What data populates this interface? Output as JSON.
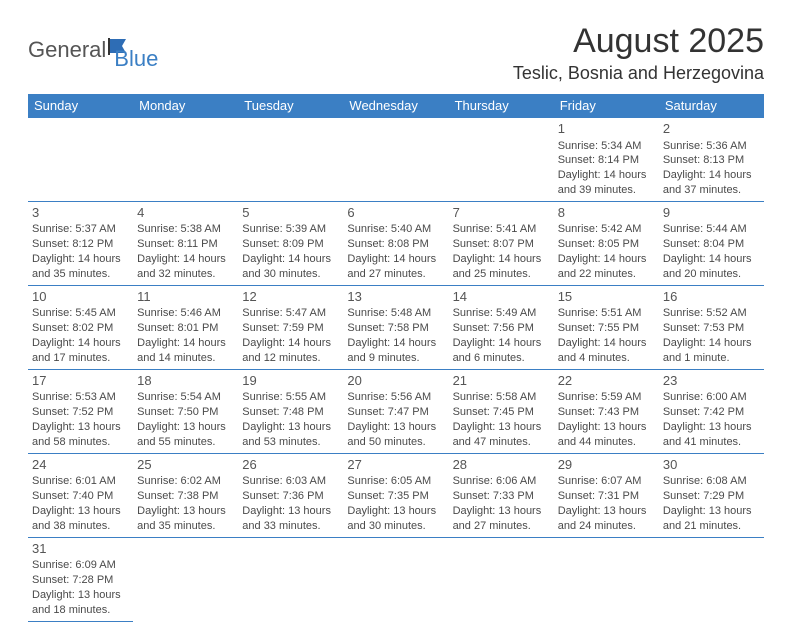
{
  "brand": {
    "part1": "General",
    "part2": "Blue"
  },
  "title": "August 2025",
  "location": "Teslic, Bosnia and Herzegovina",
  "colors": {
    "accent": "#3b7fc4",
    "text": "#4a4a4a",
    "bg": "#ffffff"
  },
  "day_headers": [
    "Sunday",
    "Monday",
    "Tuesday",
    "Wednesday",
    "Thursday",
    "Friday",
    "Saturday"
  ],
  "weeks": [
    [
      null,
      null,
      null,
      null,
      null,
      {
        "n": "1",
        "sr": "Sunrise: 5:34 AM",
        "ss": "Sunset: 8:14 PM",
        "d1": "Daylight: 14 hours",
        "d2": "and 39 minutes."
      },
      {
        "n": "2",
        "sr": "Sunrise: 5:36 AM",
        "ss": "Sunset: 8:13 PM",
        "d1": "Daylight: 14 hours",
        "d2": "and 37 minutes."
      }
    ],
    [
      {
        "n": "3",
        "sr": "Sunrise: 5:37 AM",
        "ss": "Sunset: 8:12 PM",
        "d1": "Daylight: 14 hours",
        "d2": "and 35 minutes."
      },
      {
        "n": "4",
        "sr": "Sunrise: 5:38 AM",
        "ss": "Sunset: 8:11 PM",
        "d1": "Daylight: 14 hours",
        "d2": "and 32 minutes."
      },
      {
        "n": "5",
        "sr": "Sunrise: 5:39 AM",
        "ss": "Sunset: 8:09 PM",
        "d1": "Daylight: 14 hours",
        "d2": "and 30 minutes."
      },
      {
        "n": "6",
        "sr": "Sunrise: 5:40 AM",
        "ss": "Sunset: 8:08 PM",
        "d1": "Daylight: 14 hours",
        "d2": "and 27 minutes."
      },
      {
        "n": "7",
        "sr": "Sunrise: 5:41 AM",
        "ss": "Sunset: 8:07 PM",
        "d1": "Daylight: 14 hours",
        "d2": "and 25 minutes."
      },
      {
        "n": "8",
        "sr": "Sunrise: 5:42 AM",
        "ss": "Sunset: 8:05 PM",
        "d1": "Daylight: 14 hours",
        "d2": "and 22 minutes."
      },
      {
        "n": "9",
        "sr": "Sunrise: 5:44 AM",
        "ss": "Sunset: 8:04 PM",
        "d1": "Daylight: 14 hours",
        "d2": "and 20 minutes."
      }
    ],
    [
      {
        "n": "10",
        "sr": "Sunrise: 5:45 AM",
        "ss": "Sunset: 8:02 PM",
        "d1": "Daylight: 14 hours",
        "d2": "and 17 minutes."
      },
      {
        "n": "11",
        "sr": "Sunrise: 5:46 AM",
        "ss": "Sunset: 8:01 PM",
        "d1": "Daylight: 14 hours",
        "d2": "and 14 minutes."
      },
      {
        "n": "12",
        "sr": "Sunrise: 5:47 AM",
        "ss": "Sunset: 7:59 PM",
        "d1": "Daylight: 14 hours",
        "d2": "and 12 minutes."
      },
      {
        "n": "13",
        "sr": "Sunrise: 5:48 AM",
        "ss": "Sunset: 7:58 PM",
        "d1": "Daylight: 14 hours",
        "d2": "and 9 minutes."
      },
      {
        "n": "14",
        "sr": "Sunrise: 5:49 AM",
        "ss": "Sunset: 7:56 PM",
        "d1": "Daylight: 14 hours",
        "d2": "and 6 minutes."
      },
      {
        "n": "15",
        "sr": "Sunrise: 5:51 AM",
        "ss": "Sunset: 7:55 PM",
        "d1": "Daylight: 14 hours",
        "d2": "and 4 minutes."
      },
      {
        "n": "16",
        "sr": "Sunrise: 5:52 AM",
        "ss": "Sunset: 7:53 PM",
        "d1": "Daylight: 14 hours",
        "d2": "and 1 minute."
      }
    ],
    [
      {
        "n": "17",
        "sr": "Sunrise: 5:53 AM",
        "ss": "Sunset: 7:52 PM",
        "d1": "Daylight: 13 hours",
        "d2": "and 58 minutes."
      },
      {
        "n": "18",
        "sr": "Sunrise: 5:54 AM",
        "ss": "Sunset: 7:50 PM",
        "d1": "Daylight: 13 hours",
        "d2": "and 55 minutes."
      },
      {
        "n": "19",
        "sr": "Sunrise: 5:55 AM",
        "ss": "Sunset: 7:48 PM",
        "d1": "Daylight: 13 hours",
        "d2": "and 53 minutes."
      },
      {
        "n": "20",
        "sr": "Sunrise: 5:56 AM",
        "ss": "Sunset: 7:47 PM",
        "d1": "Daylight: 13 hours",
        "d2": "and 50 minutes."
      },
      {
        "n": "21",
        "sr": "Sunrise: 5:58 AM",
        "ss": "Sunset: 7:45 PM",
        "d1": "Daylight: 13 hours",
        "d2": "and 47 minutes."
      },
      {
        "n": "22",
        "sr": "Sunrise: 5:59 AM",
        "ss": "Sunset: 7:43 PM",
        "d1": "Daylight: 13 hours",
        "d2": "and 44 minutes."
      },
      {
        "n": "23",
        "sr": "Sunrise: 6:00 AM",
        "ss": "Sunset: 7:42 PM",
        "d1": "Daylight: 13 hours",
        "d2": "and 41 minutes."
      }
    ],
    [
      {
        "n": "24",
        "sr": "Sunrise: 6:01 AM",
        "ss": "Sunset: 7:40 PM",
        "d1": "Daylight: 13 hours",
        "d2": "and 38 minutes."
      },
      {
        "n": "25",
        "sr": "Sunrise: 6:02 AM",
        "ss": "Sunset: 7:38 PM",
        "d1": "Daylight: 13 hours",
        "d2": "and 35 minutes."
      },
      {
        "n": "26",
        "sr": "Sunrise: 6:03 AM",
        "ss": "Sunset: 7:36 PM",
        "d1": "Daylight: 13 hours",
        "d2": "and 33 minutes."
      },
      {
        "n": "27",
        "sr": "Sunrise: 6:05 AM",
        "ss": "Sunset: 7:35 PM",
        "d1": "Daylight: 13 hours",
        "d2": "and 30 minutes."
      },
      {
        "n": "28",
        "sr": "Sunrise: 6:06 AM",
        "ss": "Sunset: 7:33 PM",
        "d1": "Daylight: 13 hours",
        "d2": "and 27 minutes."
      },
      {
        "n": "29",
        "sr": "Sunrise: 6:07 AM",
        "ss": "Sunset: 7:31 PM",
        "d1": "Daylight: 13 hours",
        "d2": "and 24 minutes."
      },
      {
        "n": "30",
        "sr": "Sunrise: 6:08 AM",
        "ss": "Sunset: 7:29 PM",
        "d1": "Daylight: 13 hours",
        "d2": "and 21 minutes."
      }
    ],
    [
      {
        "n": "31",
        "sr": "Sunrise: 6:09 AM",
        "ss": "Sunset: 7:28 PM",
        "d1": "Daylight: 13 hours",
        "d2": "and 18 minutes."
      },
      null,
      null,
      null,
      null,
      null,
      null
    ]
  ]
}
